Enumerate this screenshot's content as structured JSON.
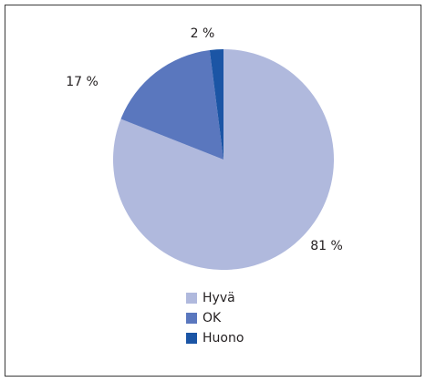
{
  "chart_data": {
    "type": "pie",
    "categories": [
      "Hyvä",
      "OK",
      "Huono"
    ],
    "values": [
      81,
      17,
      2
    ],
    "value_labels": [
      "81 %",
      "17 %",
      "2 %"
    ],
    "colors": [
      "#b0b9dd",
      "#5a77be",
      "#1b55a5"
    ],
    "legend": "bottom"
  }
}
